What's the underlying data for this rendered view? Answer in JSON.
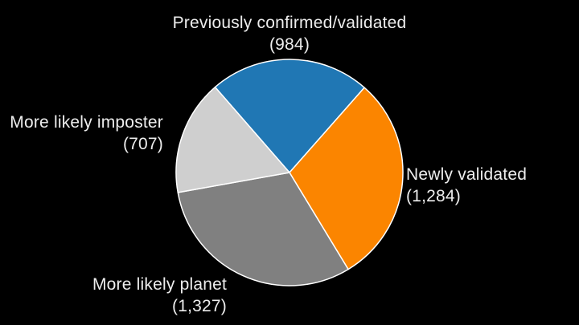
{
  "background_color": "#000000",
  "text_color": "#ededed",
  "chart_data": {
    "type": "pie",
    "title": "",
    "total": 4302,
    "legend_position": "none",
    "labels_position": "outside",
    "start_angle_deg": -41,
    "clockwise": true,
    "stroke_color": "#ffffff",
    "stroke_width": 1.5,
    "slices": [
      {
        "label": "Previously confirmed/validated",
        "value": 984,
        "value_display": "(984)",
        "color": "#2077b4",
        "label_position": "top"
      },
      {
        "label": "Newly validated",
        "value": 1284,
        "value_display": "(1,284)",
        "color": "#fb8500",
        "label_position": "right"
      },
      {
        "label": "More likely planet",
        "value": 1327,
        "value_display": "(1,327)",
        "color": "#808080",
        "label_position": "bottom"
      },
      {
        "label": "More likely imposter",
        "value": 707,
        "value_display": "(707)",
        "color": "#cfcfcf",
        "label_position": "left"
      }
    ]
  }
}
